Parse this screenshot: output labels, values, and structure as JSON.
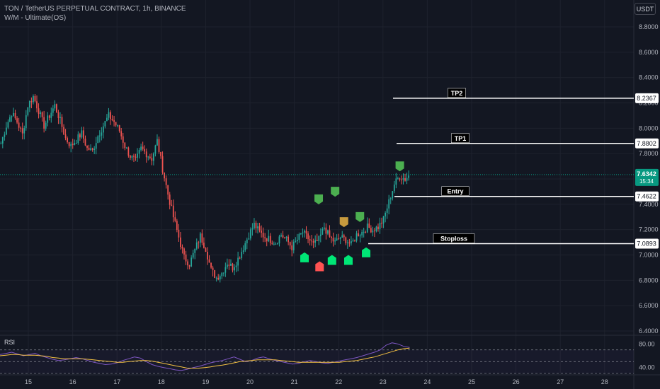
{
  "header": {
    "symbol_line": "TON / TetherUS PERPETUAL CONTRACT, 1h, BINANCE",
    "indicator_line": "W/M - Ultimate(OS)",
    "currency_button": "USDT"
  },
  "chart_data": {
    "type": "candlestick",
    "y_axis_ticks": [
      "8.8000",
      "8.6000",
      "8.4000",
      "8.2000",
      "8.0000",
      "7.8000",
      "7.6000",
      "7.4000",
      "7.2000",
      "7.0000",
      "6.8000",
      "6.6000",
      "6.4000"
    ],
    "ylim": [
      6.4,
      8.9
    ],
    "x_axis_ticks": [
      "15",
      "16",
      "17",
      "18",
      "19",
      "20",
      "21",
      "22",
      "23",
      "24",
      "25",
      "26",
      "27",
      "28"
    ],
    "current_price": {
      "value": "7.6342",
      "countdown": "15:34"
    },
    "levels": [
      {
        "label": "TP2",
        "price": "8.2367"
      },
      {
        "label": "TP1",
        "price": "7.8802"
      },
      {
        "label": "Entry",
        "price": "7.4622"
      },
      {
        "label": "Stoploss",
        "price": "7.0893"
      }
    ],
    "price_path": [
      7.88,
      8.02,
      8.12,
      8.05,
      7.95,
      8.18,
      8.25,
      8.14,
      8.02,
      8.1,
      8.18,
      8.06,
      7.92,
      7.86,
      7.91,
      7.96,
      7.84,
      7.82,
      7.94,
      8.02,
      8.1,
      8.05,
      7.98,
      7.86,
      7.78,
      7.74,
      7.84,
      7.8,
      7.76,
      7.9,
      7.68,
      7.48,
      7.3,
      7.14,
      6.98,
      6.93,
      7.04,
      7.15,
      7.05,
      6.88,
      6.82,
      6.86,
      6.94,
      6.9,
      6.97,
      7.06,
      7.16,
      7.24,
      7.18,
      7.14,
      7.12,
      7.1,
      7.16,
      7.12,
      7.06,
      7.12,
      7.18,
      7.13,
      7.08,
      7.12,
      7.22,
      7.14,
      7.1,
      7.14,
      7.12,
      7.08,
      7.16,
      7.18,
      7.22,
      7.2,
      7.22,
      7.28,
      7.42,
      7.56,
      7.62,
      7.6,
      7.64
    ],
    "rsi": {
      "label": "RSI",
      "ticks": [
        "80.00",
        "40.00"
      ],
      "ylim": [
        30,
        90
      ],
      "bands": [
        70,
        50,
        30
      ],
      "values": [
        62,
        64,
        66,
        63,
        60,
        62,
        64,
        60,
        57,
        54,
        52,
        53,
        55,
        57,
        55,
        52,
        49,
        47,
        45,
        46,
        48,
        52,
        55,
        58,
        56,
        50,
        45,
        42,
        40,
        38,
        36,
        35,
        37,
        40,
        42,
        45,
        48,
        50,
        52,
        55,
        58,
        54,
        50,
        52,
        56,
        58,
        55,
        52,
        50,
        48,
        46,
        47,
        50,
        52,
        50,
        48,
        47,
        49,
        51,
        53,
        55,
        57,
        60,
        63,
        66,
        70,
        78,
        82,
        80,
        76,
        74
      ],
      "ma": [
        60,
        61,
        62,
        62,
        61,
        61,
        61,
        60,
        59,
        57,
        56,
        55,
        55,
        55,
        55,
        54,
        53,
        52,
        51,
        50,
        49,
        49,
        50,
        51,
        52,
        52,
        51,
        49,
        47,
        45,
        43,
        41,
        39,
        39,
        39,
        40,
        41,
        43,
        44,
        46,
        48,
        50,
        51,
        52,
        53,
        53,
        53,
        53,
        52,
        51,
        50,
        49,
        49,
        49,
        49,
        49,
        49,
        49,
        49,
        50,
        51,
        52,
        54,
        56,
        58,
        61,
        64,
        67,
        70,
        72,
        73
      ]
    },
    "signals": [
      {
        "type": "buy",
        "x_day": 21.23,
        "price": 7.02
      },
      {
        "type": "sell",
        "x_day": 21.55,
        "price": 7.4
      },
      {
        "type": "sell",
        "x_day": 21.92,
        "price": 7.46
      },
      {
        "type": "buy",
        "x_day": 21.85,
        "price": 7.0
      },
      {
        "type": "sell-alt",
        "x_day": 22.12,
        "price": 7.22
      },
      {
        "type": "buy",
        "x_day": 22.22,
        "price": 7.0
      },
      {
        "type": "sell",
        "x_day": 22.48,
        "price": 7.26
      },
      {
        "type": "buy",
        "x_day": 22.62,
        "price": 7.06
      },
      {
        "type": "sell",
        "x_day": 23.38,
        "price": 7.66
      }
    ],
    "colors": {
      "up": "#26a69a",
      "down": "#ef5350",
      "background": "#131722",
      "grid": "#1e222d",
      "buy_signal": "#00e676",
      "sell_signal": "#4caf50",
      "sell_red": "#ff5252",
      "alt_signal": "#c79a3e",
      "current_price": "#089981",
      "rsi_line": "#7e57c2",
      "rsi_ma": "#f5c243"
    }
  }
}
